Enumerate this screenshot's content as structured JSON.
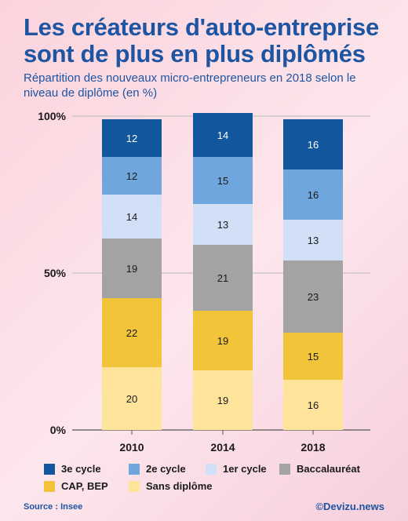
{
  "title": "Les créateurs d'auto-entreprise sont de plus en plus diplômés",
  "subtitle": "Répartition des nouveaux micro-entrepreneurs en 2018 selon le niveau de diplôme (en %)",
  "source": "Source : Insee",
  "credit": "©Devizu.news",
  "chart_data": {
    "type": "bar",
    "stacked": true,
    "categories": [
      "2010",
      "2014",
      "2018"
    ],
    "ylim": [
      0,
      100
    ],
    "yticks": [
      "0%",
      "50%",
      "100%"
    ],
    "grid": true,
    "legend_position": "bottom",
    "series": [
      {
        "name": "Sans diplôme",
        "color": "#fde49a",
        "values": [
          20,
          19,
          16
        ]
      },
      {
        "name": "CAP, BEP",
        "color": "#f2c43a",
        "values": [
          22,
          19,
          15
        ]
      },
      {
        "name": "Baccalauréat",
        "color": "#a3a3a3",
        "values": [
          19,
          21,
          23
        ]
      },
      {
        "name": "1er cycle",
        "color": "#d2e0f7",
        "values": [
          14,
          13,
          13
        ]
      },
      {
        "name": "2e cycle",
        "color": "#6fa6dd",
        "values": [
          12,
          15,
          16
        ]
      },
      {
        "name": "3e cycle",
        "color": "#12579d",
        "values": [
          12,
          14,
          16
        ]
      }
    ]
  },
  "legend": [
    {
      "label": "3e cycle",
      "color": "#12579d"
    },
    {
      "label": "2e cycle",
      "color": "#6fa6dd"
    },
    {
      "label": "1er cycle",
      "color": "#d2e0f7"
    },
    {
      "label": "Baccalauréat",
      "color": "#a3a3a3"
    },
    {
      "label": "CAP, BEP",
      "color": "#f2c43a"
    },
    {
      "label": "Sans diplôme",
      "color": "#fde49a"
    }
  ]
}
